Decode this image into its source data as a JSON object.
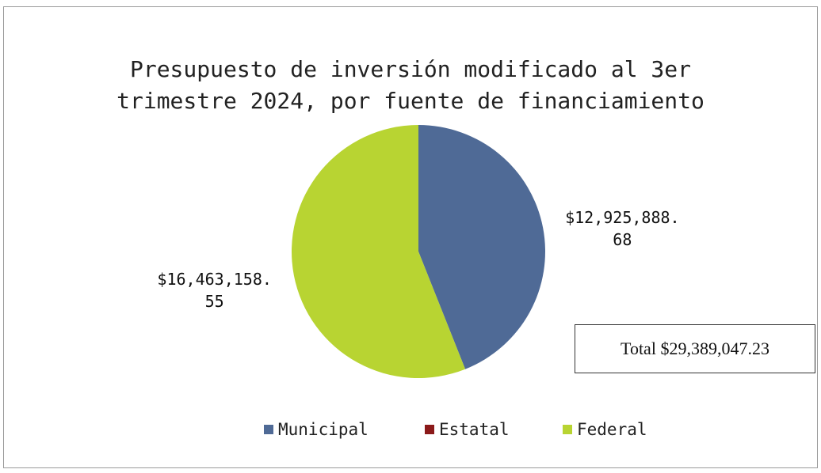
{
  "chart_data": {
    "type": "pie",
    "title": "Presupuesto de inversión modificado al 3er trimestre 2024, por fuente de financiamiento",
    "categories": [
      "Municipal",
      "Estatal",
      "Federal"
    ],
    "values": [
      12925888.68,
      0,
      16463158.55
    ],
    "value_labels": [
      "$12,925,888.68",
      null,
      "$16,463,158.55"
    ],
    "colors": [
      "#4f6a96",
      "#8b1a1a",
      "#b8d432"
    ],
    "annotation": "Total $29,389,047.23",
    "legend": "bottom"
  }
}
